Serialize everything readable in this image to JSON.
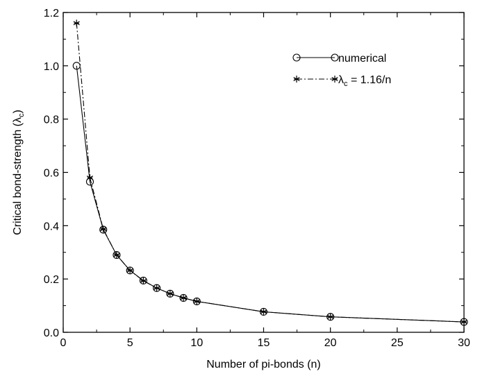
{
  "chart_data": {
    "type": "line",
    "xlabel": "Number of pi-bonds (n)",
    "ylabel": "Critical bond-strength (λc)",
    "xlim": [
      0,
      30
    ],
    "ylim": [
      0.0,
      1.2
    ],
    "xticks": [
      "0",
      "5",
      "10",
      "15",
      "20",
      "25",
      "30"
    ],
    "yticks": [
      "0.0",
      "0.2",
      "0.4",
      "0.6",
      "0.8",
      "1.0",
      "1.2"
    ],
    "xtick_values": [
      0,
      5,
      10,
      15,
      20,
      25,
      30
    ],
    "ytick_values": [
      0.0,
      0.2,
      0.4,
      0.6,
      0.8,
      1.0,
      1.2
    ],
    "grid": false,
    "legend_position": "top-right",
    "series": [
      {
        "name": "numerical",
        "marker": "open-circle",
        "line": "solid",
        "x": [
          1,
          2,
          3,
          4,
          5,
          6,
          7,
          8,
          9,
          10,
          15,
          20,
          30
        ],
        "y": [
          1.0,
          0.565,
          0.385,
          0.29,
          0.232,
          0.194,
          0.166,
          0.145,
          0.129,
          0.116,
          0.077,
          0.058,
          0.039
        ]
      },
      {
        "name": "λc = 1.16/n",
        "name_parts": {
          "symbol": "λ",
          "subscript": "c",
          "rest": " = 1.16/n"
        },
        "marker": "asterisk",
        "line": "dash-dot",
        "x": [
          1,
          2,
          3,
          4,
          5,
          6,
          7,
          8,
          9,
          10,
          15,
          20,
          30
        ],
        "y": [
          1.16,
          0.58,
          0.387,
          0.29,
          0.232,
          0.193,
          0.166,
          0.145,
          0.129,
          0.116,
          0.077,
          0.058,
          0.039
        ]
      }
    ]
  }
}
